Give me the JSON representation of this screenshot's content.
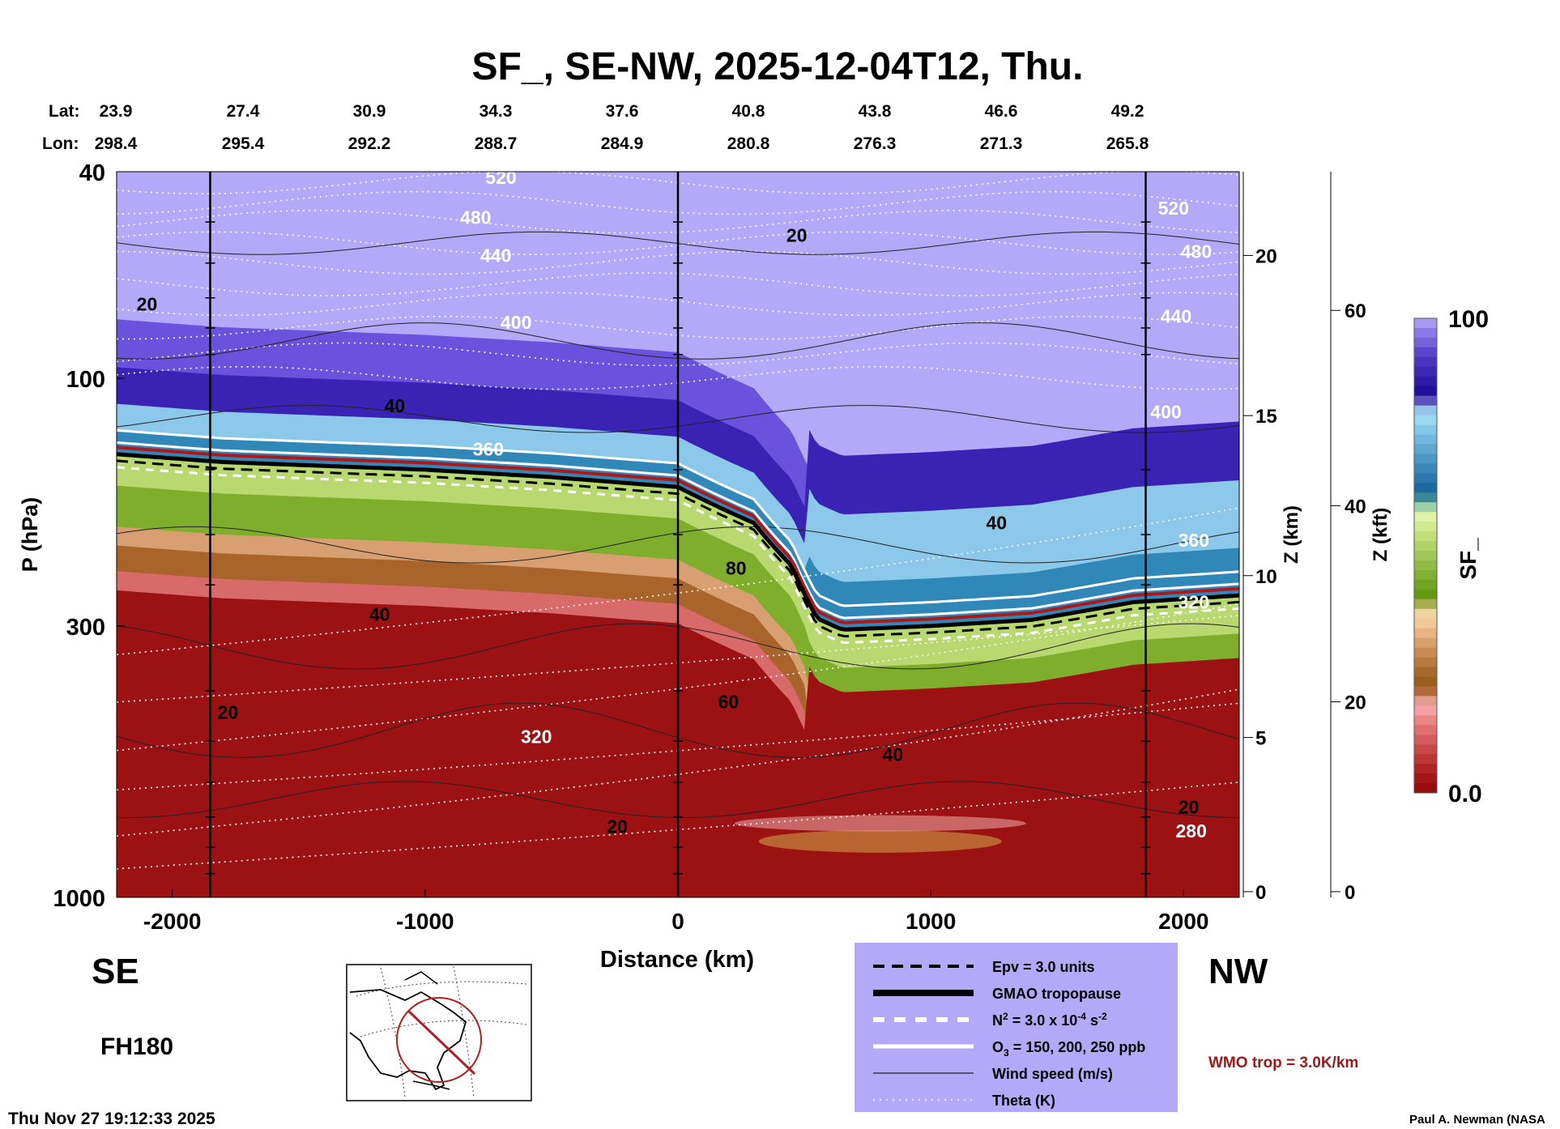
{
  "chart_data": {
    "type": "heatmap",
    "title": "SF_, SE-NW, 2025-12-04T12, Thu.",
    "xlabel": "Distance (km)",
    "ylabel": "P (hPa)",
    "y2label": "Z (km)",
    "y3label": "Z (kft)",
    "colorbar_label": "SF_",
    "colorbar_range": [
      0.0,
      100
    ],
    "colorbar_ticks": [
      "100",
      "0.0"
    ],
    "xlim": [
      -2220,
      2220
    ],
    "ylim": [
      1000,
      40
    ],
    "yscale": "log",
    "x_ticks": [
      {
        "v": -2000,
        "label": "-2000"
      },
      {
        "v": -1000,
        "label": "-1000"
      },
      {
        "v": 0,
        "label": "0"
      },
      {
        "v": 1000,
        "label": "1000"
      },
      {
        "v": 2000,
        "label": "2000"
      }
    ],
    "y_ticks": [
      {
        "v": 40,
        "label": "40"
      },
      {
        "v": 100,
        "label": "100"
      },
      {
        "v": 300,
        "label": "300"
      },
      {
        "v": 1000,
        "label": "1000"
      }
    ],
    "zkm_ticks": [
      {
        "p": 58,
        "label": "20"
      },
      {
        "p": 118,
        "label": "15"
      },
      {
        "p": 240,
        "label": "10"
      },
      {
        "p": 492,
        "label": "5"
      },
      {
        "p": 975,
        "label": "0"
      }
    ],
    "zkft_ticks": [
      {
        "p": 74,
        "label": "60"
      },
      {
        "p": 176,
        "label": "40"
      },
      {
        "p": 420,
        "label": "20"
      },
      {
        "p": 975,
        "label": "0"
      }
    ],
    "lat_label": "Lat:",
    "lon_label": "Lon:",
    "lat": [
      "23.9",
      "27.4",
      "30.9",
      "34.3",
      "37.6",
      "40.8",
      "43.8",
      "46.6",
      "49.2"
    ],
    "lon": [
      "298.4",
      "295.4",
      "292.2",
      "288.7",
      "284.9",
      "280.8",
      "276.3",
      "271.3",
      "265.8"
    ],
    "vertical_lines_km": [
      -1850,
      0,
      1850
    ],
    "tropopause_p": [
      [
        -2220,
        140
      ],
      [
        -1800,
        145
      ],
      [
        -1000,
        150
      ],
      [
        -500,
        155
      ],
      [
        0,
        162
      ],
      [
        300,
        190
      ],
      [
        450,
        230
      ],
      [
        550,
        290
      ],
      [
        650,
        305
      ],
      [
        1000,
        300
      ],
      [
        1400,
        292
      ],
      [
        1800,
        270
      ],
      [
        2220,
        262
      ]
    ],
    "theta_labels": [
      {
        "x": -700,
        "p": 41,
        "label": "520"
      },
      {
        "x": -800,
        "p": 49,
        "label": "480"
      },
      {
        "x": -720,
        "p": 58,
        "label": "440"
      },
      {
        "x": -640,
        "p": 78,
        "label": "400"
      },
      {
        "x": -750,
        "p": 137,
        "label": "360"
      },
      {
        "x": -560,
        "p": 490,
        "label": "320"
      },
      {
        "x": 1960,
        "p": 47,
        "label": "520"
      },
      {
        "x": 2050,
        "p": 57,
        "label": "480"
      },
      {
        "x": 1970,
        "p": 76,
        "label": "440"
      },
      {
        "x": 1930,
        "p": 116,
        "label": "400"
      },
      {
        "x": 2040,
        "p": 205,
        "label": "360"
      },
      {
        "x": 2040,
        "p": 270,
        "label": "320"
      },
      {
        "x": 2030,
        "p": 745,
        "label": "280"
      }
    ],
    "wind_labels": [
      {
        "x": 470,
        "p": 53,
        "label": "20"
      },
      {
        "x": -2100,
        "p": 72,
        "label": "20"
      },
      {
        "x": -1120,
        "p": 113,
        "label": "40"
      },
      {
        "x": 230,
        "p": 232,
        "label": "80"
      },
      {
        "x": -1180,
        "p": 285,
        "label": "40"
      },
      {
        "x": 200,
        "p": 420,
        "label": "60"
      },
      {
        "x": -1780,
        "p": 440,
        "label": "20"
      },
      {
        "x": 850,
        "p": 530,
        "label": "40"
      },
      {
        "x": 1260,
        "p": 190,
        "label": "40"
      },
      {
        "x": -240,
        "p": 730,
        "label": "20"
      },
      {
        "x": 2020,
        "p": 700,
        "label": "20"
      }
    ],
    "legend": [
      {
        "label": "Epv = 3.0 units",
        "style": "black-dashed"
      },
      {
        "label": "GMAO tropopause",
        "style": "black-thick"
      },
      {
        "label_main": "N",
        "sup1": "2",
        "label_mid": " = 3.0 x 10",
        "sup2": "-4",
        "label_end": " s",
        "sup3": "-2",
        "style": "white-dashed"
      },
      {
        "label_main": "O",
        "sub1": "3",
        "label_end": " = 150, 200, 250 ppb",
        "style": "white-solid"
      },
      {
        "label": "Wind speed (m/s)",
        "style": "black-thin"
      },
      {
        "label": "Theta (K)",
        "style": "white-dotted"
      }
    ]
  },
  "annotations": {
    "left_dir": "SE",
    "right_dir": "NW",
    "forecast_hour": "FH180",
    "timestamp": "Thu Nov 27 19:12:33 2025",
    "wmo_trop": "WMO trop = 3.0K/km",
    "author": "Paul A. Newman (NASA"
  },
  "colors": {
    "upper": "#b4a8f8",
    "purple": "#3b22b8",
    "blue": "#5ab0de",
    "green": "#94c24a",
    "tan": "#c98a4a",
    "red": "#9c1212",
    "wmo": "#a01818",
    "legend_bg": "#b4a8f8"
  }
}
